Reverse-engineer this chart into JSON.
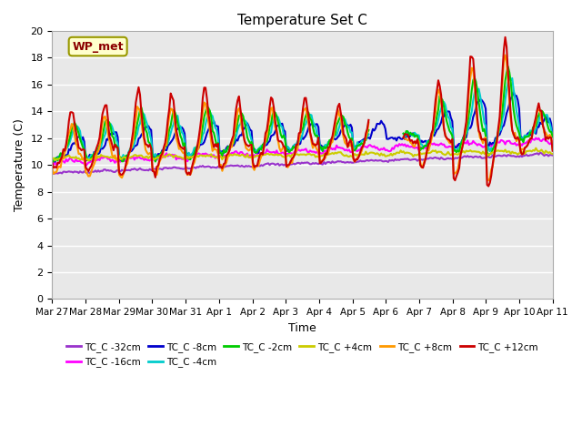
{
  "title": "Temperature Set C",
  "xlabel": "Time",
  "ylabel": "Temperature (C)",
  "ylim": [
    0,
    20
  ],
  "yticks": [
    0,
    2,
    4,
    6,
    8,
    10,
    12,
    14,
    16,
    18,
    20
  ],
  "x_labels": [
    "Mar 27",
    "Mar 28",
    "Mar 29",
    "Mar 30",
    "Mar 31",
    "Apr 1",
    "Apr 2",
    "Apr 3",
    "Apr 4",
    "Apr 5",
    "Apr 6",
    "Apr 7",
    "Apr 8",
    "Apr 9",
    "Apr 10",
    "Apr 11"
  ],
  "annotation_text": "WP_met",
  "background_color": "#e8e8e8",
  "series": [
    {
      "label": "TC_C -32cm",
      "color": "#9933cc"
    },
    {
      "label": "TC_C -16cm",
      "color": "#ff00ff"
    },
    {
      "label": "TC_C -8cm",
      "color": "#0000cc"
    },
    {
      "label": "TC_C -4cm",
      "color": "#00cccc"
    },
    {
      "label": "TC_C -2cm",
      "color": "#00cc00"
    },
    {
      "label": "TC_C +4cm",
      "color": "#cccc00"
    },
    {
      "label": "TC_C +8cm",
      "color": "#ff9900"
    },
    {
      "label": "TC_C +12cm",
      "color": "#cc0000"
    }
  ],
  "legend_ncol": 6,
  "linewidth": 1.5
}
